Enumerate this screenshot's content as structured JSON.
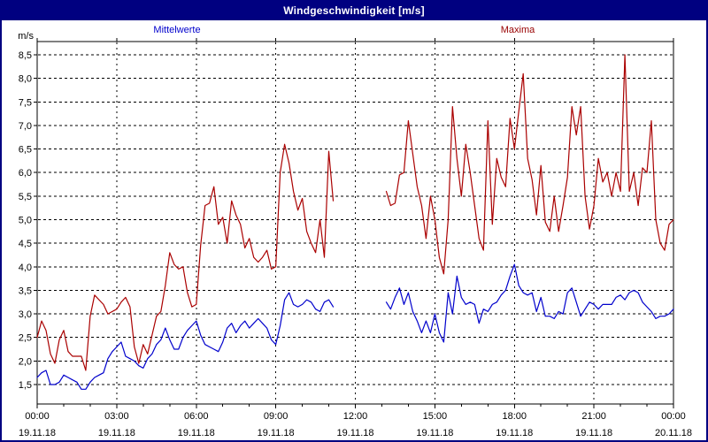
{
  "title": "Windgeschwindigkeit [m/s]",
  "legend": {
    "mean_label": "Mittelwerte",
    "max_label": "Maxima"
  },
  "colors": {
    "titlebar_bg": "#000080",
    "titlebar_text": "#ffffff",
    "border": "#000080",
    "mean_line": "#0000cc",
    "max_line": "#aa0000",
    "axis": "#000000"
  },
  "chart_data": {
    "type": "line",
    "title": "Windgeschwindigkeit [m/s]",
    "xlabel": "",
    "ylabel": "m/s",
    "ylim": [
      1.5,
      8.5
    ],
    "grid": true,
    "legend_position": "top",
    "sample_interval_minutes": 10,
    "x_range_hours": 24,
    "data_gap": "approx. 11:20 - 13:00 no data",
    "y_tick_labels": [
      "8,5",
      "8,0",
      "7,5",
      "7,0",
      "6,5",
      "6,0",
      "5,5",
      "5,0",
      "4,5",
      "4,0",
      "3,5",
      "3,0",
      "2,5",
      "2,0",
      "1,5"
    ],
    "x_ticks": [
      {
        "time": "00:00",
        "date": "19.11.18"
      },
      {
        "time": "03:00",
        "date": "19.11.18"
      },
      {
        "time": "06:00",
        "date": "19.11.18"
      },
      {
        "time": "09:00",
        "date": "19.11.18"
      },
      {
        "time": "12:00",
        "date": "19.11.18"
      },
      {
        "time": "15:00",
        "date": "19.11.18"
      },
      {
        "time": "18:00",
        "date": "19.11.18"
      },
      {
        "time": "21:00",
        "date": "19.11.18"
      },
      {
        "time": "00:00",
        "date": "20.11.18"
      }
    ],
    "series": [
      {
        "name": "Mittelwerte",
        "color": "#0000cc",
        "values": [
          1.65,
          1.75,
          1.8,
          1.5,
          1.5,
          1.55,
          1.7,
          1.65,
          1.6,
          1.55,
          1.4,
          1.4,
          1.55,
          1.65,
          1.7,
          1.75,
          2.05,
          2.2,
          2.3,
          2.4,
          2.1,
          2.05,
          2.0,
          1.9,
          1.85,
          2.05,
          2.15,
          2.35,
          2.45,
          2.7,
          2.45,
          2.25,
          2.25,
          2.5,
          2.65,
          2.75,
          2.85,
          2.55,
          2.35,
          2.3,
          2.25,
          2.2,
          2.4,
          2.7,
          2.8,
          2.6,
          2.75,
          2.85,
          2.7,
          2.8,
          2.9,
          2.8,
          2.7,
          2.45,
          2.35,
          2.75,
          3.3,
          3.45,
          3.2,
          3.15,
          3.2,
          3.3,
          3.25,
          3.1,
          3.05,
          3.25,
          3.3,
          3.15,
          null,
          null,
          null,
          null,
          null,
          null,
          null,
          null,
          null,
          null,
          null,
          3.25,
          3.1,
          3.35,
          3.55,
          3.2,
          3.45,
          3.05,
          2.85,
          2.6,
          2.85,
          2.6,
          3.0,
          2.6,
          2.4,
          3.45,
          3.0,
          3.8,
          3.35,
          3.2,
          3.25,
          3.2,
          2.8,
          3.1,
          3.05,
          3.2,
          3.25,
          3.4,
          3.5,
          3.8,
          4.05,
          3.6,
          3.45,
          3.4,
          3.45,
          3.05,
          3.35,
          2.95,
          2.95,
          2.9,
          3.05,
          3.0,
          3.45,
          3.55,
          3.25,
          2.95,
          3.1,
          3.25,
          3.2,
          3.1,
          3.2,
          3.2,
          3.2,
          3.35,
          3.4,
          3.3,
          3.45,
          3.5,
          3.45,
          3.25,
          3.15,
          3.05,
          2.9,
          2.95,
          2.95,
          3.0,
          3.1
        ]
      },
      {
        "name": "Maxima",
        "color": "#aa0000",
        "values": [
          2.5,
          2.85,
          2.65,
          2.15,
          1.95,
          2.45,
          2.65,
          2.2,
          2.1,
          2.1,
          2.1,
          1.8,
          2.95,
          3.4,
          3.3,
          3.2,
          3.0,
          3.05,
          3.1,
          3.25,
          3.35,
          3.15,
          2.3,
          1.95,
          2.35,
          2.15,
          2.55,
          2.95,
          3.05,
          3.6,
          4.3,
          4.05,
          3.95,
          4.0,
          3.45,
          3.15,
          3.2,
          4.45,
          5.3,
          5.35,
          5.7,
          4.9,
          5.05,
          4.5,
          5.4,
          5.1,
          4.9,
          4.4,
          4.6,
          4.2,
          4.1,
          4.2,
          4.35,
          3.95,
          4.0,
          6.0,
          6.6,
          6.2,
          5.6,
          5.2,
          5.45,
          4.75,
          4.5,
          4.3,
          5.0,
          4.2,
          6.45,
          5.4,
          null,
          null,
          null,
          null,
          null,
          null,
          null,
          null,
          null,
          null,
          null,
          5.6,
          5.3,
          5.35,
          5.95,
          6.0,
          7.1,
          6.4,
          5.7,
          5.3,
          4.6,
          5.5,
          5.0,
          4.2,
          3.85,
          5.0,
          7.4,
          6.3,
          5.5,
          6.6,
          6.0,
          5.3,
          4.6,
          4.35,
          7.1,
          4.9,
          6.3,
          5.9,
          5.7,
          7.15,
          6.5,
          7.3,
          8.1,
          6.3,
          5.85,
          5.1,
          6.15,
          4.95,
          4.75,
          5.5,
          4.75,
          5.3,
          5.9,
          7.4,
          6.8,
          7.4,
          5.5,
          4.8,
          5.3,
          6.3,
          5.8,
          6.0,
          5.5,
          6.0,
          5.6,
          8.5,
          5.6,
          6.0,
          5.3,
          6.1,
          6.0,
          7.1,
          5.0,
          4.5,
          4.35,
          4.9,
          5.0
        ]
      }
    ]
  }
}
